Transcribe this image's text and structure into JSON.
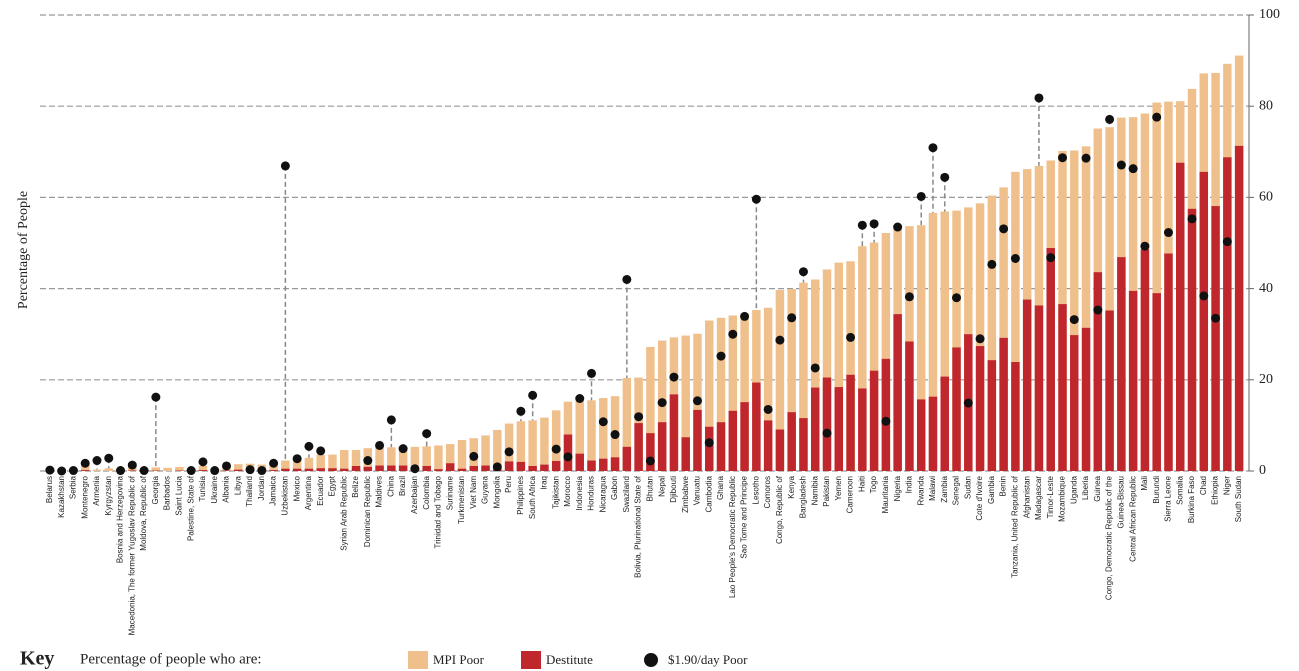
{
  "chart_data": {
    "type": "bar",
    "y_label": "Percentage of People",
    "categories": [
      "Belarus",
      "Kazakhstan",
      "Serbia",
      "Montenegro",
      "Armenia",
      "Kyrgyzstan",
      "Bosnia and Herzegovina",
      "Macedonia, The former Yugoslav Republic of",
      "Moldova, Republic of",
      "Georgia",
      "Barbados",
      "Saint Lucia",
      "Palestine, State of",
      "Tunisia",
      "Ukraine",
      "Albania",
      "Libya",
      "Thailand",
      "Jordan",
      "Jamaica",
      "Uzbekistan",
      "Mexico",
      "Argentina",
      "Ecuador",
      "Egypt",
      "Syrian Arab Republic",
      "Belize",
      "Dominican Republic",
      "Maldives",
      "China",
      "Brazil",
      "Azerbaijan",
      "Colombia",
      "Trinidad and Tobago",
      "Suriname",
      "Turkmenistan",
      "Viet Nam",
      "Guyana",
      "Mongolia",
      "Peru",
      "Philippines",
      "South Africa",
      "Iraq",
      "Tajikistan",
      "Morocco",
      "Indonesia",
      "Honduras",
      "Nicaragua",
      "Gabon",
      "Swaziland",
      "Bolivia, Plurinational State of",
      "Bhutan",
      "Nepal",
      "Djibouti",
      "Zimbabwe",
      "Vanuatu",
      "Cambodia",
      "Ghana",
      "Lao People's Democratic Republic",
      "Sao Tome and Principe",
      "Lesotho",
      "Comoros",
      "Congo, Republic of",
      "Kenya",
      "Bangladesh",
      "Namibia",
      "Pakistan",
      "Yemen",
      "Cameroon",
      "Haiti",
      "Togo",
      "Mauritania",
      "Nigeria",
      "India",
      "Rwanda",
      "Malawi",
      "Zambia",
      "Senegal",
      "Sudan",
      "Cote d'Ivoire",
      "Gambia",
      "Benin",
      "Tanzania, United Republic of",
      "Afghanistan",
      "Madagascar",
      "Timor-Leste",
      "Mozambique",
      "Uganda",
      "Liberia",
      "Guinea",
      "Congo, Democratic Republic of the",
      "Guinea-Bissau",
      "Central African Republic",
      "Mali",
      "Burundi",
      "Sierra Leone",
      "Somalia",
      "Burkina Faso",
      "Chad",
      "Ethiopia",
      "Niger",
      "South Sudan"
    ],
    "series": [
      {
        "name": "MPI Poor",
        "color": "#f0c08c",
        "values": [
          0,
          0.5,
          0.4,
          1.5,
          0.3,
          0.6,
          0.6,
          1.2,
          0.4,
          0.8,
          0.7,
          0.9,
          0.6,
          1.1,
          0.5,
          0.7,
          1.5,
          1.6,
          1.4,
          1.6,
          2.3,
          2.6,
          2.9,
          3.5,
          3.6,
          4.6,
          4.6,
          5.0,
          5.2,
          5.2,
          5.3,
          5.3,
          5.4,
          5.6,
          5.9,
          6.8,
          7.2,
          7.8,
          9.0,
          10.4,
          10.9,
          11.1,
          11.7,
          13.3,
          15.2,
          15.5,
          15.5,
          16.0,
          16.4,
          20.4,
          20.5,
          27.2,
          28.6,
          29.3,
          29.7,
          30.1,
          33.0,
          33.6,
          34.1,
          34.5,
          35.3,
          35.8,
          39.7,
          39.9,
          41.3,
          42.0,
          44.2,
          45.7,
          46.0,
          49.3,
          50.1,
          52.2,
          53.2,
          53.7,
          53.9,
          56.6,
          56.9,
          57.1,
          57.8,
          58.7,
          60.4,
          62.2,
          65.6,
          66.2,
          66.9,
          68.1,
          70.2,
          70.3,
          71.2,
          75.1,
          75.4,
          77.5,
          77.6,
          78.4,
          80.8,
          81.0,
          81.1,
          83.8,
          87.2,
          87.3,
          89.3,
          91.1
        ]
      },
      {
        "name": "Destitute",
        "color": "#c0272d",
        "values": [
          0,
          0,
          0.1,
          0.2,
          0,
          0,
          0.1,
          0.1,
          0,
          0.1,
          0,
          0.1,
          0.1,
          0.2,
          0,
          0.1,
          0.3,
          0.2,
          0.1,
          0.2,
          0.5,
          0.5,
          0.5,
          0.6,
          0.6,
          0.5,
          1.1,
          0.9,
          1.2,
          1.2,
          1.2,
          0.7,
          1.1,
          0.4,
          1.7,
          0.5,
          1.1,
          1.2,
          1.4,
          2.1,
          2.0,
          1.1,
          1.4,
          2.2,
          8.0,
          3.8,
          2.3,
          2.7,
          3.0,
          5.3,
          10.5,
          8.3,
          10.7,
          16.8,
          7.4,
          13.4,
          9.7,
          10.7,
          13.2,
          15.1,
          19.4,
          11.1,
          9.1,
          12.9,
          11.6,
          18.3,
          20.5,
          18.4,
          21.1,
          18.1,
          22.0,
          24.6,
          34.4,
          28.4,
          15.7,
          16.3,
          20.7,
          27.1,
          30.0,
          27.4,
          24.3,
          29.2,
          23.9,
          37.6,
          36.3,
          48.9,
          36.6,
          29.8,
          31.4,
          43.6,
          35.2,
          46.9,
          39.5,
          48.6,
          39.0,
          47.7,
          67.6,
          57.5,
          65.6,
          58.1,
          68.8,
          71.3
        ]
      },
      {
        "name": "$1.90/day Poor",
        "color": "#111111",
        "type": "dot",
        "values": [
          0.2,
          0,
          0.1,
          1.7,
          2.3,
          2.8,
          0.1,
          1.3,
          0.1,
          16.2,
          null,
          null,
          0.1,
          2.0,
          0.1,
          1.1,
          null,
          0.3,
          0.1,
          1.7,
          66.9,
          2.7,
          5.4,
          4.4,
          null,
          null,
          null,
          2.3,
          5.6,
          11.2,
          4.9,
          0.5,
          8.2,
          null,
          null,
          null,
          3.2,
          null,
          0.9,
          4.2,
          13.1,
          16.6,
          null,
          4.8,
          3.1,
          15.9,
          21.4,
          10.8,
          8.0,
          42.0,
          11.9,
          2.2,
          15.0,
          20.6,
          null,
          15.4,
          6.2,
          25.2,
          30.0,
          33.9,
          59.6,
          13.5,
          28.7,
          33.6,
          43.7,
          22.6,
          8.3,
          null,
          29.3,
          53.9,
          54.2,
          10.9,
          53.5,
          38.2,
          60.2,
          70.9,
          64.4,
          38.0,
          14.9,
          29.0,
          45.3,
          53.1,
          46.6,
          null,
          81.8,
          46.8,
          68.7,
          33.2,
          68.6,
          35.3,
          77.1,
          67.1,
          66.3,
          49.3,
          77.6,
          52.3,
          null,
          55.3,
          38.4,
          33.5,
          50.3,
          null
        ]
      }
    ],
    "ylim": [
      0,
      100
    ],
    "yticks": [
      0,
      20,
      40,
      60,
      80,
      100
    ],
    "grid": true,
    "y_axis_side": "right",
    "legend": {
      "title": "Key",
      "subtitle": "Percentage of people who are:"
    }
  }
}
